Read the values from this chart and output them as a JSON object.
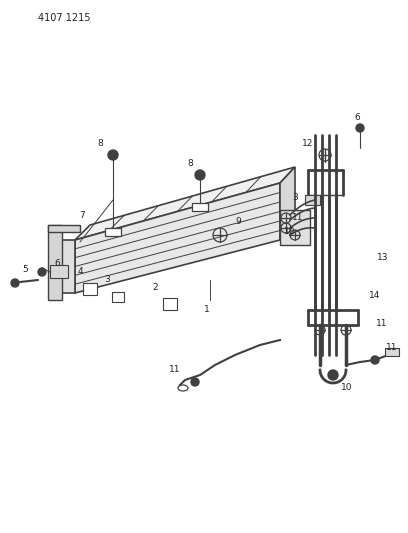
{
  "title": "4107 1215",
  "bg_color": "#ffffff",
  "line_color": "#404040",
  "text_color": "#222222",
  "fig_width": 4.08,
  "fig_height": 5.33,
  "dpi": 100
}
